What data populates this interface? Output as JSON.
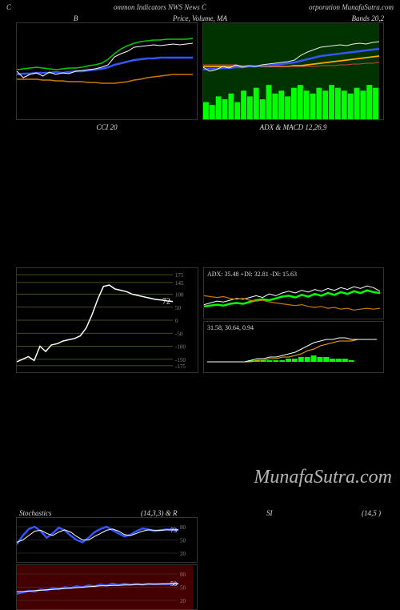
{
  "header": {
    "left": "C",
    "center": "ommon  Indicators NWS News C",
    "right": "orporation  MunafaSutra.com"
  },
  "watermark": "MunafaSutra.com",
  "row1": {
    "left_title": "B",
    "center_title": "Price,  Volume,  MA",
    "right_title": "Bands 20,2"
  },
  "bb_chart": {
    "bg": "#000000",
    "upper_color": "#00cc00",
    "lower_color": "#cc7700",
    "mid_color": "#3355ff",
    "price_color": "#ffffff",
    "upper": [
      58,
      57,
      56,
      55,
      56,
      57,
      58,
      57,
      56,
      56,
      55,
      53,
      52,
      50,
      45,
      38,
      32,
      28,
      25,
      23,
      22,
      21,
      21,
      20,
      20,
      20,
      20,
      19
    ],
    "mid": [
      64,
      63,
      63,
      62,
      62,
      62,
      61,
      62,
      61,
      60,
      60,
      59,
      58,
      57,
      55,
      52,
      50,
      48,
      46,
      45,
      44,
      44,
      43,
      43,
      43,
      43,
      43,
      43
    ],
    "lower": [
      70,
      70,
      70,
      70,
      71,
      71,
      72,
      72,
      73,
      73,
      73,
      74,
      74,
      75,
      75,
      75,
      74,
      73,
      71,
      70,
      68,
      67,
      66,
      65,
      64,
      64,
      64,
      64
    ],
    "price": [
      60,
      68,
      64,
      62,
      66,
      61,
      64,
      62,
      63,
      60,
      59,
      58,
      57,
      55,
      52,
      42,
      38,
      35,
      30,
      29,
      28,
      27,
      28,
      27,
      26,
      27,
      26,
      25
    ]
  },
  "price_vol": {
    "bg": "#003300",
    "volume_color": "#00ff00",
    "price_color": "#eeeeee",
    "ma1_color": "#3355ff",
    "ma2_color": "#ffaa00",
    "ma3_color": "#cc4444",
    "volumes": [
      30,
      25,
      40,
      35,
      45,
      30,
      50,
      40,
      55,
      35,
      60,
      45,
      50,
      40,
      55,
      60,
      50,
      45,
      55,
      50,
      60,
      55,
      50,
      45,
      55,
      50,
      60,
      55
    ],
    "price": [
      55,
      60,
      58,
      54,
      56,
      52,
      55,
      53,
      54,
      52,
      51,
      50,
      49,
      48,
      46,
      40,
      36,
      33,
      30,
      29,
      28,
      27,
      28,
      26,
      25,
      26,
      24,
      23
    ],
    "ma1": [
      58,
      57,
      57,
      56,
      56,
      55,
      55,
      54,
      54,
      53,
      53,
      52,
      51,
      50,
      49,
      47,
      45,
      43,
      41,
      40,
      39,
      38,
      37,
      36,
      35,
      34,
      33,
      32
    ],
    "ma2": [
      54,
      54,
      54,
      54,
      54,
      54,
      54,
      54,
      54,
      54,
      54,
      54,
      54,
      54,
      53,
      53,
      52,
      51,
      50,
      49,
      48,
      47,
      46,
      45,
      44,
      43,
      42,
      41
    ],
    "ma3": [
      52,
      52,
      52,
      52,
      52,
      52,
      53,
      53,
      53,
      53,
      53,
      54,
      54,
      54,
      54,
      54,
      54,
      54,
      53,
      53,
      53,
      52,
      52,
      51,
      51,
      50,
      50,
      49
    ]
  },
  "cci": {
    "title": "CCI 20",
    "grid_color": "#556b2f",
    "line_color": "#ffffff",
    "levels": [
      175,
      145,
      100,
      50,
      0,
      -50,
      -100,
      -150,
      -175
    ],
    "current_label": "72",
    "values": [
      -160,
      -150,
      -140,
      -155,
      -100,
      -120,
      -95,
      -90,
      -80,
      -75,
      -70,
      -60,
      -30,
      20,
      80,
      130,
      135,
      120,
      115,
      110,
      100,
      95,
      90,
      85,
      80,
      78,
      74,
      72
    ]
  },
  "adx": {
    "title": "ADX   & MACD 12,26,9",
    "text": "ADX: 35.48   +DI: 32.81 -DI: 15.63",
    "adx_color": "#ffffff",
    "pdi_color": "#00ff00",
    "mdi_color": "#cc7700",
    "adx_vals": [
      20,
      22,
      24,
      23,
      25,
      27,
      26,
      28,
      30,
      28,
      32,
      30,
      33,
      35,
      33,
      36,
      34,
      37,
      35,
      38,
      36,
      39,
      37,
      40,
      38,
      41,
      39,
      35
    ],
    "pdi": [
      18,
      19,
      20,
      19,
      21,
      22,
      21,
      23,
      25,
      26,
      25,
      27,
      29,
      30,
      28,
      31,
      29,
      32,
      30,
      33,
      31,
      34,
      32,
      35,
      33,
      36,
      34,
      33
    ],
    "mdi": [
      30,
      29,
      28,
      29,
      27,
      26,
      27,
      25,
      24,
      25,
      23,
      22,
      21,
      20,
      19,
      20,
      18,
      17,
      18,
      16,
      17,
      15,
      16,
      14,
      15,
      16,
      15,
      16
    ]
  },
  "macd": {
    "text": "31.58,  30.64,  0.94",
    "macd_color": "#ffffff",
    "signal_color": "#ffaa00",
    "hist_color": "#00ff00",
    "macd_vals": [
      0,
      0,
      0,
      0,
      0,
      0,
      0,
      1,
      2,
      2,
      3,
      3,
      4,
      5,
      6,
      8,
      10,
      12,
      13,
      14,
      14,
      15,
      15,
      14,
      14,
      14,
      14,
      14
    ],
    "signal": [
      0,
      0,
      0,
      0,
      0,
      0,
      0,
      0,
      1,
      1,
      2,
      2,
      3,
      3,
      4,
      5,
      7,
      8,
      10,
      11,
      12,
      13,
      13,
      13,
      14,
      14,
      14,
      14
    ],
    "hist": [
      0,
      0,
      0,
      0,
      0,
      0,
      0,
      1,
      1,
      1,
      1,
      1,
      1,
      2,
      2,
      3,
      3,
      4,
      3,
      3,
      2,
      2,
      2,
      1,
      0,
      0,
      0,
      0
    ]
  },
  "stoch_titles": {
    "left": "Stochastics",
    "left2": "(14,3,3) & R",
    "right": "SI",
    "right2": "(14,5                              )"
  },
  "stoch": {
    "bg": "#000000",
    "k_color": "#3355ff",
    "d_color": "#ffffff",
    "levels": [
      80,
      50,
      20
    ],
    "current": "73",
    "k": [
      40,
      60,
      75,
      80,
      70,
      55,
      65,
      78,
      72,
      60,
      50,
      45,
      55,
      68,
      75,
      80,
      72,
      65,
      58,
      62,
      70,
      76,
      74,
      70,
      72,
      74,
      73,
      73
    ],
    "d": [
      45,
      50,
      60,
      70,
      72,
      65,
      60,
      68,
      73,
      68,
      58,
      50,
      50,
      58,
      65,
      72,
      75,
      70,
      62,
      60,
      65,
      70,
      73,
      72,
      72,
      73,
      73,
      73
    ]
  },
  "rsi": {
    "bg": "#440000",
    "k_color": "#3355ff",
    "d_color": "#ffffff",
    "levels": [
      80,
      50,
      20
    ],
    "current": "58",
    "k": [
      35,
      38,
      42,
      40,
      45,
      43,
      48,
      46,
      50,
      48,
      52,
      50,
      54,
      52,
      56,
      54,
      58,
      55,
      58,
      56,
      58,
      56,
      58,
      57,
      58,
      57,
      58,
      58
    ],
    "d": [
      40,
      40,
      41,
      42,
      43,
      44,
      45,
      46,
      47,
      48,
      49,
      50,
      51,
      52,
      53,
      53,
      54,
      54,
      55,
      55,
      56,
      56,
      57,
      57,
      57,
      58,
      58,
      58
    ]
  }
}
